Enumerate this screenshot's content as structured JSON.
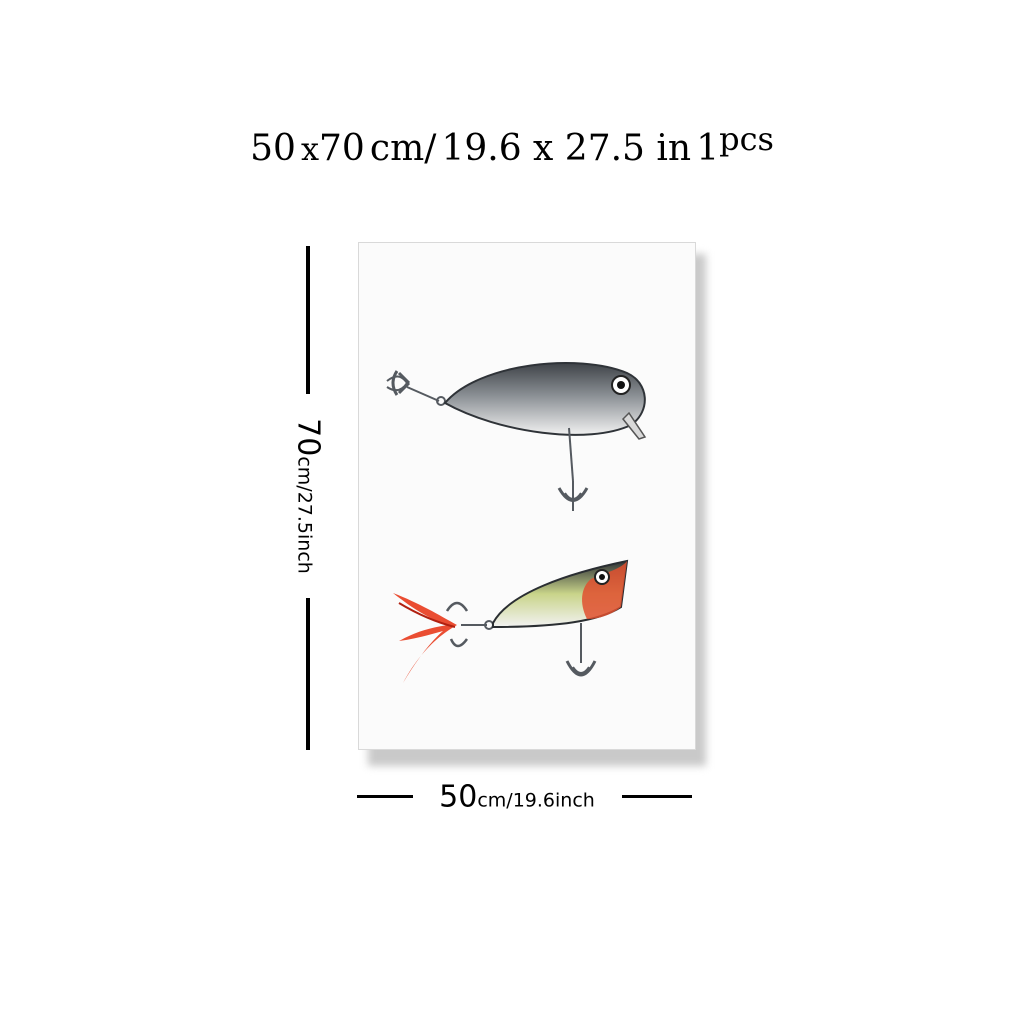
{
  "headline": {
    "w": "50",
    "x": "x",
    "h": "70",
    "cm_slash": "cm/",
    "inch_dims": "19.6 x 27.5 in",
    "qty": "1",
    "qty_unit": "pcs"
  },
  "height_dim": {
    "value": "70",
    "unit": "cm/27.5inch"
  },
  "width_dim": {
    "value": "50",
    "unit": "cm/19.6inch"
  },
  "artwork": {
    "subject_icons": [
      "crankbait-lure-icon",
      "popper-lure-icon"
    ],
    "colors": {
      "lure_body_gray": "#7d8186",
      "popper_red": "#e0502f",
      "feather_red": "#e83a1c",
      "hook": "#555a60"
    }
  }
}
